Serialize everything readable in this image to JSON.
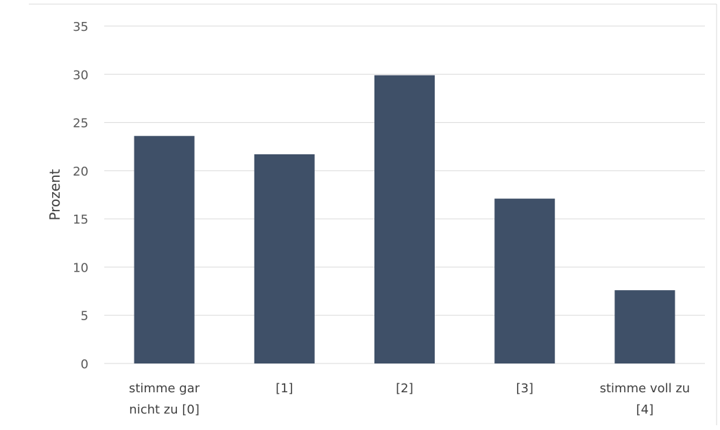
{
  "chart_data": {
    "type": "bar",
    "categories": [
      [
        "stimme gar",
        "nicht zu [0]"
      ],
      [
        "[1]"
      ],
      [
        "[2]"
      ],
      [
        "[3]"
      ],
      [
        "stimme voll zu",
        "[4]"
      ]
    ],
    "values": [
      23.6,
      21.7,
      29.9,
      17.1,
      7.6
    ],
    "title": "",
    "xlabel": "",
    "ylabel": "Prozent",
    "ylim": [
      0,
      35
    ],
    "yticks": [
      0,
      5,
      10,
      15,
      20,
      25,
      30,
      35
    ],
    "grid": true,
    "legend": "none",
    "colors": {
      "bar": "#3f5068",
      "grid": "#d9d9d9",
      "frame": "#d9d9d9"
    }
  }
}
